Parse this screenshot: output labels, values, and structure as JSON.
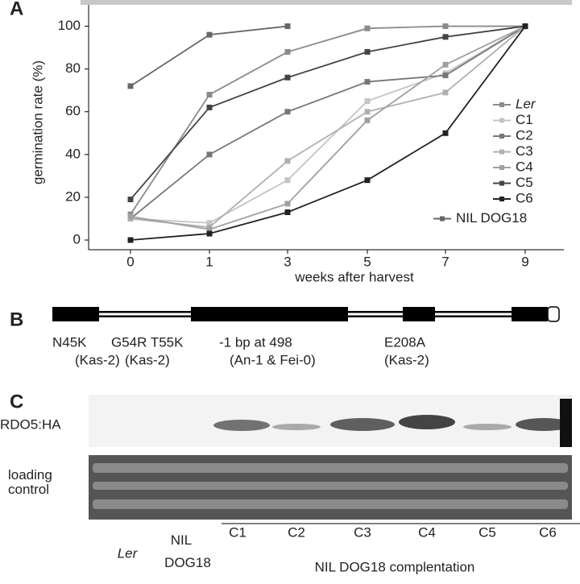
{
  "chart_data": {
    "type": "line",
    "x_label": "weeks after harvest",
    "y_label": "germination rate (%)",
    "categories": [
      "0",
      "1",
      "3",
      "5",
      "7",
      "9"
    ],
    "ylim": [
      0,
      110
    ],
    "yticks": [
      0,
      20,
      40,
      60,
      80,
      100
    ],
    "series": [
      {
        "name": "Ler",
        "color": "#8a8a8a",
        "values": [
          12,
          68,
          88,
          99,
          100,
          100
        ]
      },
      {
        "name": "C1",
        "color": "#c4c4c4",
        "values": [
          10,
          8,
          28,
          65,
          78,
          100
        ]
      },
      {
        "name": "C2",
        "color": "#777777",
        "values": [
          10,
          40,
          60,
          74,
          77,
          100
        ]
      },
      {
        "name": "C3",
        "color": "#b0b0b0",
        "values": [
          10,
          6,
          37,
          60,
          69,
          100
        ]
      },
      {
        "name": "C4",
        "color": "#a0a0a0",
        "values": [
          11,
          5,
          17,
          56,
          82,
          100
        ]
      },
      {
        "name": "C5",
        "color": "#444444",
        "values": [
          19,
          62,
          76,
          88,
          95,
          100
        ]
      },
      {
        "name": "C6",
        "color": "#222222",
        "values": [
          0,
          3,
          13,
          28,
          50,
          100
        ]
      },
      {
        "name": "NIL DOG18",
        "color": "#666666",
        "values": [
          72,
          96,
          100,
          null,
          null,
          null
        ]
      }
    ]
  },
  "panel_labels": [
    "A",
    "B",
    "C"
  ],
  "gene_diagram": {
    "mutations": [
      {
        "change": "N45K",
        "accession": "(Kas-2)"
      },
      {
        "change": "G54R T55K",
        "accession": "(Kas-2)"
      },
      {
        "change": "-1 bp at 498",
        "accession": "(An-1 & Fei-0)"
      },
      {
        "change": "E208A",
        "accession": "(Kas-2)"
      }
    ]
  },
  "blot": {
    "rows": [
      "RDO5:HA",
      "loading control"
    ],
    "lanes": [
      "Ler",
      "NIL DOG18",
      "C1",
      "C2",
      "C3",
      "C4",
      "C5",
      "C6"
    ],
    "group_label": "NIL DOG18 complentation"
  }
}
